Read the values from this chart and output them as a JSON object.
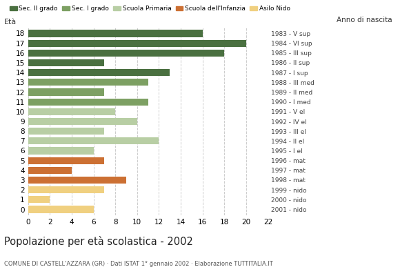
{
  "ages": [
    18,
    17,
    16,
    15,
    14,
    13,
    12,
    11,
    10,
    9,
    8,
    7,
    6,
    5,
    4,
    3,
    2,
    1,
    0
  ],
  "values": [
    16,
    20,
    18,
    7,
    13,
    11,
    7,
    11,
    8,
    10,
    7,
    12,
    6,
    7,
    4,
    9,
    7,
    2,
    6
  ],
  "year_labels": [
    "1983 - V sup",
    "1984 - VI sup",
    "1985 - III sup",
    "1986 - II sup",
    "1987 - I sup",
    "1988 - III med",
    "1989 - II med",
    "1990 - I med",
    "1991 - V el",
    "1992 - IV el",
    "1993 - III el",
    "1994 - II el",
    "1995 - I el",
    "1996 - mat",
    "1997 - mat",
    "1998 - mat",
    "1999 - nido",
    "2000 - nido",
    "2001 - nido"
  ],
  "bar_colors_by_age": {
    "18": "#4a7040",
    "17": "#4a7040",
    "16": "#4a7040",
    "15": "#4a7040",
    "14": "#4a7040",
    "13": "#7da063",
    "12": "#7da063",
    "11": "#7da063",
    "10": "#b8cea4",
    "9": "#b8cea4",
    "8": "#b8cea4",
    "7": "#b8cea4",
    "6": "#b8cea4",
    "5": "#cc7033",
    "4": "#cc7033",
    "3": "#cc7033",
    "2": "#f0d080",
    "1": "#f0d080",
    "0": "#f0d080"
  },
  "ylabel": "Età",
  "title": "Popolazione per età scolastica - 2002",
  "subtitle": "COMUNE DI CASTELL'AZZARA (GR) · Dati ISTAT 1° gennaio 2002 · Elaborazione TUTTITALIA.IT",
  "xlim": [
    0,
    22
  ],
  "xticks": [
    0,
    2,
    4,
    6,
    8,
    10,
    12,
    14,
    16,
    18,
    20,
    22
  ],
  "background_color": "#ffffff",
  "grid_color": "#cccccc",
  "legend_labels": [
    "Sec. II grado",
    "Sec. I grado",
    "Scuola Primaria",
    "Scuola dell'Infanzia",
    "Asilo Nido"
  ],
  "legend_colors": [
    "#4a7040",
    "#7da063",
    "#b8cea4",
    "#cc7033",
    "#f0d080"
  ],
  "bar_height": 0.72,
  "anno_label": "Anno di nascita"
}
